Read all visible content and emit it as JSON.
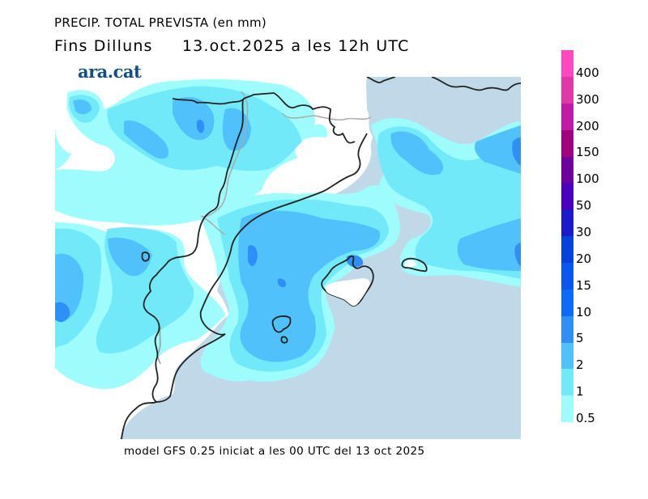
{
  "header": {
    "title": "PRECIP. TOTAL PREVISTA (en mm)",
    "subtitle_day": "Fins Dilluns",
    "subtitle_date": "13.oct.2025 a les 12h UTC"
  },
  "logo": "ara.cat",
  "footer": "model GFS 0.25 iniciat a les 00 UTC del 13 oct 2025",
  "legend": {
    "unit": "mm",
    "levels": [
      {
        "label": "0.5",
        "color": "#9ffcfd"
      },
      {
        "label": "1",
        "color": "#71e9f9"
      },
      {
        "label": "2",
        "color": "#50c1fb"
      },
      {
        "label": "5",
        "color": "#2e8ff6"
      },
      {
        "label": "10",
        "color": "#0b6bf8"
      },
      {
        "label": "15",
        "color": "#0957f0"
      },
      {
        "label": "20",
        "color": "#0342db"
      },
      {
        "label": "30",
        "color": "#1b1bcc"
      },
      {
        "label": "50",
        "color": "#4a00be"
      },
      {
        "label": "100",
        "color": "#6e009f"
      },
      {
        "label": "150",
        "color": "#a1007e"
      },
      {
        "label": "200",
        "color": "#c21aa6"
      },
      {
        "label": "300",
        "color": "#e038a6"
      },
      {
        "label": "400",
        "color": "#ff48bf"
      }
    ]
  },
  "colors": {
    "sea": "#bfd9e9",
    "land": "#ffffff",
    "coastline": "#222222",
    "border": "#aaaaaa"
  }
}
